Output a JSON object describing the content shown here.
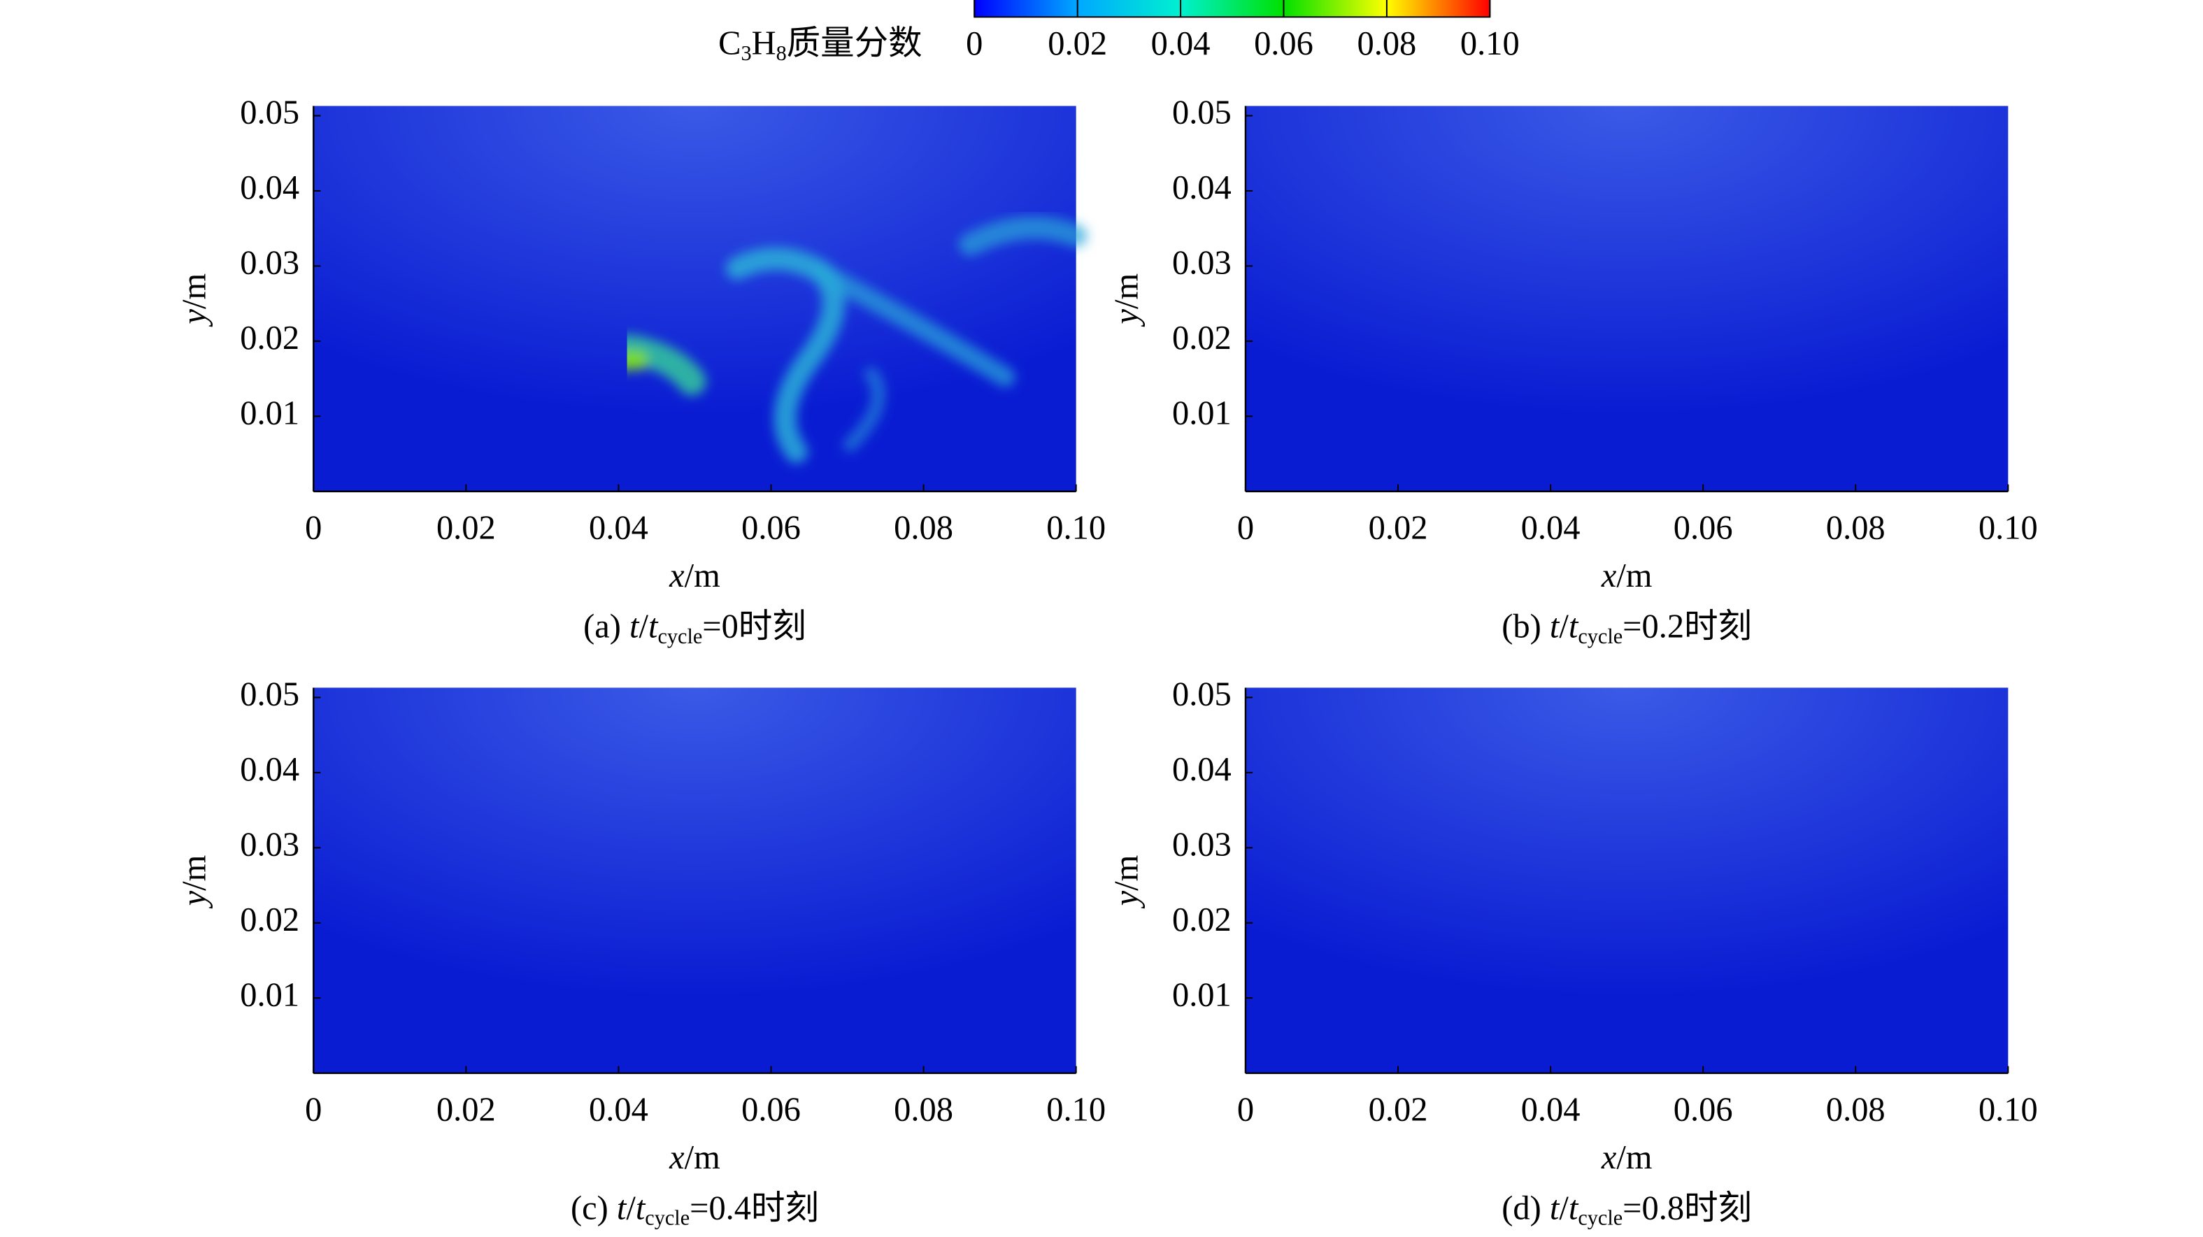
{
  "colorbar": {
    "label": [
      "C",
      "3",
      "H",
      "8",
      "质量分数"
    ],
    "lim": [
      0,
      0.1
    ],
    "ticks": [
      0,
      0.02,
      0.04,
      0.06,
      0.08,
      {
        "value": 0.1,
        "label": "0.10"
      }
    ],
    "colors": [
      "#0000ff",
      "#00a8ff",
      "#00f0d0",
      "#00e000",
      "#ffff00",
      "#ff0000"
    ]
  },
  "chart_data": [
    {
      "type": "contour",
      "caption": [
        "(a) ",
        "t",
        "/",
        "t",
        "cycle",
        "=0时刻"
      ],
      "xlabel": [
        "x",
        "/m"
      ],
      "ylabel": [
        "y",
        "/m"
      ],
      "xlim": [
        0,
        0.1
      ],
      "ylim": [
        0,
        0.0513
      ],
      "xticks": [
        0,
        0.02,
        0.04,
        0.06,
        0.08,
        {
          "value": 0.1,
          "label": "0.10"
        }
      ],
      "yticks": [
        0.01,
        0.02,
        0.03,
        0.04,
        0.05
      ]
    },
    {
      "type": "contour",
      "caption": [
        "(b) ",
        "t",
        "/",
        "t",
        "cycle",
        "=0.2时刻"
      ],
      "xlabel": [
        "x",
        "/m"
      ],
      "ylabel": [
        "y",
        "/m"
      ],
      "xlim": [
        0,
        0.1
      ],
      "ylim": [
        0,
        0.0513
      ],
      "xticks": [
        0,
        0.02,
        0.04,
        0.06,
        0.08,
        {
          "value": 0.1,
          "label": "0.10"
        }
      ],
      "yticks": [
        0.01,
        0.02,
        0.03,
        0.04,
        0.05
      ]
    },
    {
      "type": "contour",
      "caption": [
        "(c) ",
        "t",
        "/",
        "t",
        "cycle",
        "=0.4时刻"
      ],
      "xlabel": [
        "x",
        "/m"
      ],
      "ylabel": [
        "y",
        "/m"
      ],
      "xlim": [
        0,
        0.1
      ],
      "ylim": [
        0,
        0.0513
      ],
      "xticks": [
        0,
        0.02,
        0.04,
        0.06,
        0.08,
        {
          "value": 0.1,
          "label": "0.10"
        }
      ],
      "yticks": [
        0.01,
        0.02,
        0.03,
        0.04,
        0.05
      ]
    },
    {
      "type": "contour",
      "caption": [
        "(d) ",
        "t",
        "/",
        "t",
        "cycle",
        "=0.8时刻"
      ],
      "xlabel": [
        "x",
        "/m"
      ],
      "ylabel": [
        "y",
        "/m"
      ],
      "xlim": [
        0,
        0.1
      ],
      "ylim": [
        0,
        0.0513
      ],
      "xticks": [
        0,
        0.02,
        0.04,
        0.06,
        0.08,
        {
          "value": 0.1,
          "label": "0.10"
        }
      ],
      "yticks": [
        0.01,
        0.02,
        0.03,
        0.04,
        0.05
      ]
    }
  ]
}
